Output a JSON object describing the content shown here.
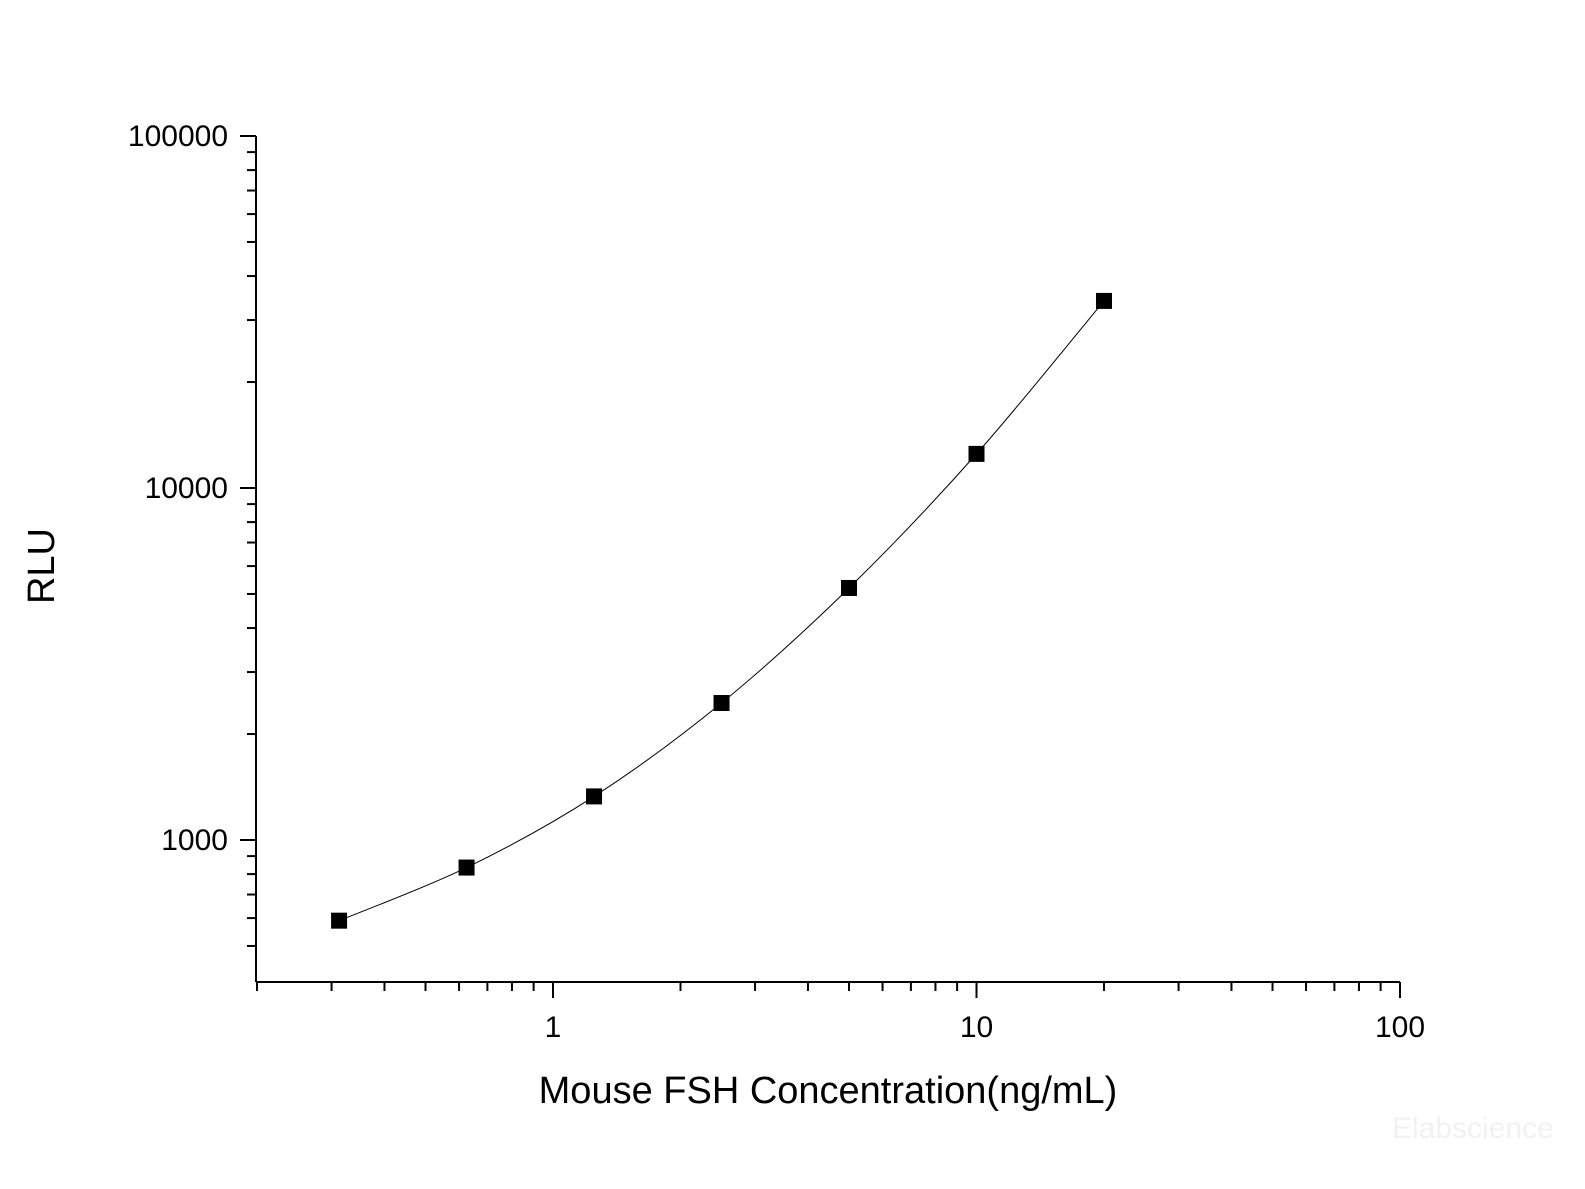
{
  "chart_data": {
    "type": "line",
    "title": "",
    "xlabel": "Mouse FSH Concentration(ng/mL)",
    "ylabel": "RLU",
    "x_scale": "log",
    "y_scale": "log",
    "xlim": [
      0.2,
      100
    ],
    "ylim": [
      480,
      100000
    ],
    "x_ticks": [
      {
        "value": 1,
        "label": "1"
      },
      {
        "value": 10,
        "label": "10"
      },
      {
        "value": 100,
        "label": "100"
      }
    ],
    "y_ticks": [
      {
        "value": 1000,
        "label": "1000"
      },
      {
        "value": 10000,
        "label": "10000"
      },
      {
        "value": 100000,
        "label": "100000"
      }
    ],
    "grid": false,
    "legend": "none",
    "marker": "square",
    "series": [
      {
        "x": [
          0.3125,
          0.625,
          1.25,
          2.5,
          5,
          10,
          20
        ],
        "y": [
          590,
          835,
          1330,
          2450,
          5200,
          12500,
          34000
        ]
      }
    ],
    "colors": {
      "axis": "#000000",
      "line": "#000000",
      "marker": "#000000"
    },
    "watermark": "Elabscience"
  }
}
